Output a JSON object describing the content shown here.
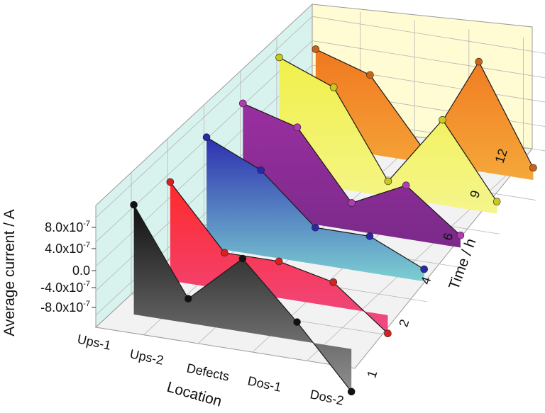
{
  "chart_data": {
    "type": "3d-ribbon",
    "title": "",
    "xlabel": "Location",
    "ylabel": "Time / h",
    "zlabel": "Average current / A",
    "categories": [
      "Ups-1",
      "Ups-2",
      "Defects",
      "Dos-1",
      "Dos-2"
    ],
    "depth_ticks": [
      "1",
      "2",
      "4",
      "6",
      "9",
      "12"
    ],
    "z_ticks": [
      {
        "mant": "8.0x10",
        "exp": "-7"
      },
      {
        "mant": "4.0x10",
        "exp": "-7"
      },
      {
        "mant": "0.0",
        "exp": ""
      },
      {
        "mant": "-4.0x10",
        "exp": "-7"
      },
      {
        "mant": "-8.0x10",
        "exp": "-7"
      }
    ],
    "zlim": [
      -1e-06,
      1e-06
    ],
    "series": [
      {
        "time": "1",
        "values": [
          8e-07,
          -6e-07,
          2e-07,
          -7e-07,
          -1.7e-06
        ],
        "color_top": "#111111",
        "color_bottom": "#8f8f8f",
        "marker": "#111111"
      },
      {
        "time": "2",
        "values": [
          6.2e-07,
          -4e-07,
          -4e-07,
          -6e-07,
          -1.3e-06
        ],
        "color_top": "#ff2a2a",
        "color_bottom": "#ee4a86",
        "marker": "#d82020"
      },
      {
        "time": "4",
        "values": [
          8e-07,
          4e-07,
          -4e-07,
          -4e-07,
          -8e-07
        ],
        "color_top": "#2d2fb0",
        "color_bottom": "#7cd0d2",
        "marker": "#2828a8"
      },
      {
        "time": "6",
        "values": [
          8e-07,
          5.5e-07,
          -5.5e-07,
          -1.2e-07,
          -8e-07
        ],
        "color_top": "#9a2fa0",
        "color_bottom": "#7a2a8a",
        "marker": "#b43ab4"
      },
      {
        "time": "9",
        "values": [
          1e-06,
          6.5e-07,
          -7.5e-07,
          4e-07,
          -8e-07
        ],
        "color_top": "#f0f04a",
        "color_bottom": "#f5f58c",
        "marker": "#c8c81e"
      },
      {
        "time": "12",
        "values": [
          5.8e-07,
          3e-07,
          -8e-07,
          8e-07,
          -8e-07
        ],
        "color_top": "#f07820",
        "color_bottom": "#f5a83a",
        "marker": "#c8641a"
      }
    ]
  }
}
